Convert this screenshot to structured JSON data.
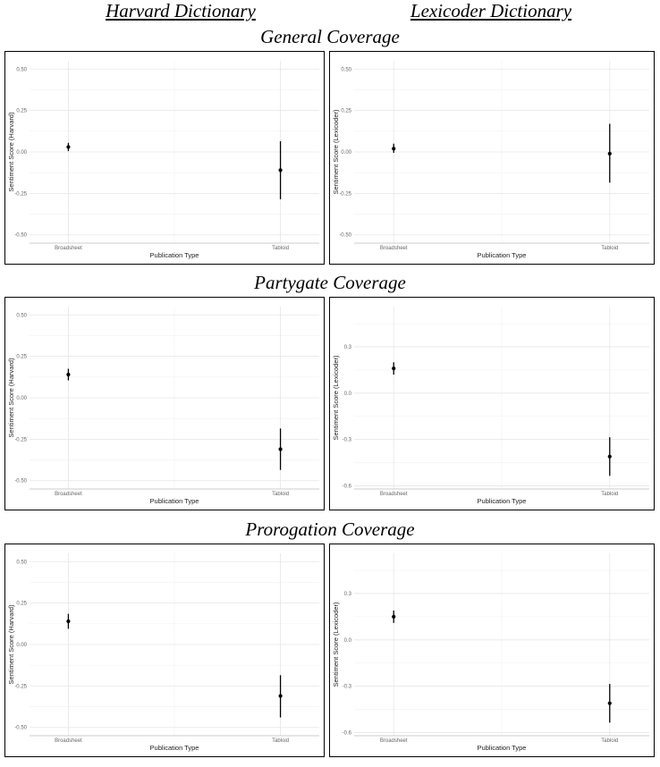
{
  "headers": {
    "harvard": "Harvard Dictionary",
    "lexicoder": "Lexicoder Dictionary"
  },
  "sections": [
    {
      "title": "General Coverage"
    },
    {
      "title": "Partygate Coverage"
    },
    {
      "title": "Prorogation Coverage"
    }
  ],
  "chart_data": [
    {
      "type": "scatter",
      "section": "General Coverage",
      "dictionary": "Harvard",
      "categories": [
        "Broadsheet",
        "Tabloid"
      ],
      "xlabel": "Publication Type",
      "ylabel": "Sentiment Score (Harvard)",
      "ylim": [
        -0.55,
        0.55
      ],
      "yticks": [
        0.5,
        0.25,
        0.0,
        -0.25,
        -0.5
      ],
      "ytick_labels": [
        "0.50",
        "0.25",
        "0.00",
        "-0.25",
        "-0.50"
      ],
      "values": [
        0.03,
        -0.11
      ],
      "lower": [
        0.005,
        -0.285
      ],
      "upper": [
        0.055,
        0.065
      ]
    },
    {
      "type": "scatter",
      "section": "General Coverage",
      "dictionary": "Lexicoder",
      "categories": [
        "Broadsheet",
        "Tabloid"
      ],
      "xlabel": "Publication Type",
      "ylabel": "Sentiment Score (Lexicoder)",
      "ylim": [
        -0.55,
        0.55
      ],
      "yticks": [
        0.5,
        0.25,
        0.0,
        -0.25,
        -0.5
      ],
      "ytick_labels": [
        "0.50",
        "0.25",
        "0.00",
        "-0.25",
        "-0.50"
      ],
      "values": [
        0.02,
        -0.01
      ],
      "lower": [
        -0.005,
        -0.185
      ],
      "upper": [
        0.05,
        0.17
      ]
    },
    {
      "type": "scatter",
      "section": "Partygate Coverage",
      "dictionary": "Harvard",
      "categories": [
        "Broadsheet",
        "Tabloid"
      ],
      "xlabel": "Publication Type",
      "ylabel": "Sentiment Score (Harvard)",
      "ylim": [
        -0.55,
        0.55
      ],
      "yticks": [
        0.5,
        0.25,
        0.0,
        -0.25,
        -0.5
      ],
      "ytick_labels": [
        "0.50",
        "0.25",
        "0.00",
        "-0.25",
        "-0.50"
      ],
      "values": [
        0.14,
        -0.31
      ],
      "lower": [
        0.105,
        -0.435
      ],
      "upper": [
        0.175,
        -0.185
      ]
    },
    {
      "type": "scatter",
      "section": "Partygate Coverage",
      "dictionary": "Lexicoder",
      "categories": [
        "Broadsheet",
        "Tabloid"
      ],
      "xlabel": "Publication Type",
      "ylabel": "Sentiment Score (Lexicoder)",
      "ylim": [
        -0.62,
        0.56
      ],
      "yticks": [
        0.3,
        0.0,
        -0.3,
        -0.6
      ],
      "ytick_labels": [
        "0.3",
        "0.0",
        "-0.3",
        "-0.6"
      ],
      "values": [
        0.16,
        -0.41
      ],
      "lower": [
        0.12,
        -0.535
      ],
      "upper": [
        0.2,
        -0.285
      ]
    },
    {
      "type": "scatter",
      "section": "Prorogation Coverage",
      "dictionary": "Harvard",
      "categories": [
        "Broadsheet",
        "Tabloid"
      ],
      "xlabel": "Publication Type",
      "ylabel": "Sentiment Score (Harvard)",
      "ylim": [
        -0.55,
        0.55
      ],
      "yticks": [
        0.5,
        0.25,
        0.0,
        -0.25,
        -0.5
      ],
      "ytick_labels": [
        "0.50",
        "0.25",
        "0.00",
        "-0.25",
        "-0.50"
      ],
      "values": [
        0.14,
        -0.31
      ],
      "lower": [
        0.095,
        -0.44
      ],
      "upper": [
        0.185,
        -0.185
      ]
    },
    {
      "type": "scatter",
      "section": "Prorogation Coverage",
      "dictionary": "Lexicoder",
      "categories": [
        "Broadsheet",
        "Tabloid"
      ],
      "xlabel": "Publication Type",
      "ylabel": "Sentiment Score (Lexicoder)",
      "ylim": [
        -0.62,
        0.56
      ],
      "yticks": [
        0.3,
        0.0,
        -0.3,
        -0.6
      ],
      "ytick_labels": [
        "0.3",
        "0.0",
        "-0.3",
        "-0.6"
      ],
      "values": [
        0.15,
        -0.41
      ],
      "lower": [
        0.11,
        -0.535
      ],
      "upper": [
        0.19,
        -0.285
      ]
    }
  ]
}
